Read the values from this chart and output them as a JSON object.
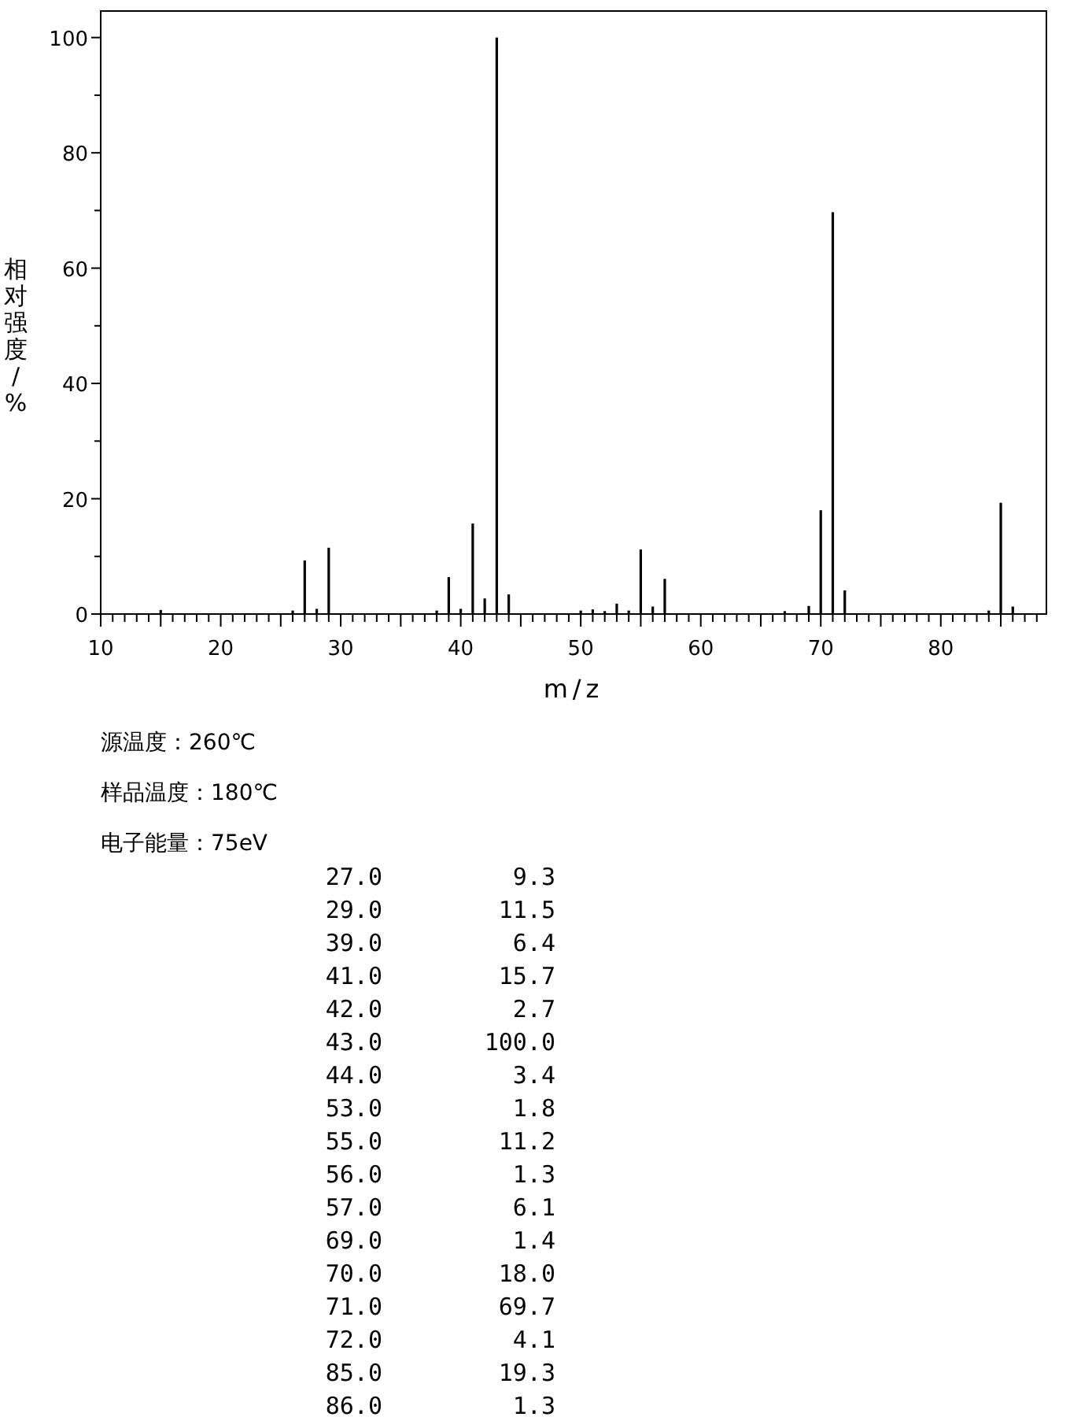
{
  "chart_data": [
    {
      "type": "bar",
      "xlabel": "m/z",
      "ylabel": "相对强度/%",
      "x": [
        15,
        26,
        27,
        28,
        29,
        38,
        39,
        40,
        41,
        42,
        43,
        44,
        50,
        51,
        52,
        53,
        54,
        55,
        56,
        57,
        67,
        69,
        70,
        71,
        72,
        84,
        85,
        86
      ],
      "values": [
        0.7,
        0.6,
        9.3,
        0.9,
        11.5,
        0.6,
        6.4,
        0.9,
        15.7,
        2.7,
        100.0,
        3.4,
        0.6,
        0.8,
        0.5,
        1.8,
        0.6,
        11.2,
        1.3,
        6.1,
        0.5,
        1.4,
        18.0,
        69.7,
        4.1,
        0.6,
        19.3,
        1.3
      ],
      "color": "#000000",
      "xlim": [
        10,
        88.8
      ],
      "xticks": [
        10,
        20,
        30,
        40,
        50,
        60,
        70,
        80
      ],
      "ylim": [
        0,
        104.6
      ],
      "yticks": [
        0,
        20,
        40,
        60,
        80,
        100
      ],
      "annotations": [
        "源温度：260℃",
        "样品温度：180℃",
        "电子能量：75eV"
      ]
    },
    {
      "type": "other",
      "annotations": [
        "27.0",
        "9.3",
        "29.0",
        "11.5",
        "39.0",
        "6.4",
        "41.0",
        "15.7",
        "42.0",
        "2.7",
        "43.0",
        "100.0",
        "44.0",
        "3.4",
        "53.0",
        "1.8",
        "55.0",
        "11.2",
        "56.0",
        "1.3",
        "57.0",
        "6.1",
        "69.0",
        "1.4",
        "70.0",
        "18.0",
        "71.0",
        "69.7",
        "72.0",
        "4.1",
        "85.0",
        "19.3",
        "86.0",
        "1.3"
      ]
    }
  ]
}
